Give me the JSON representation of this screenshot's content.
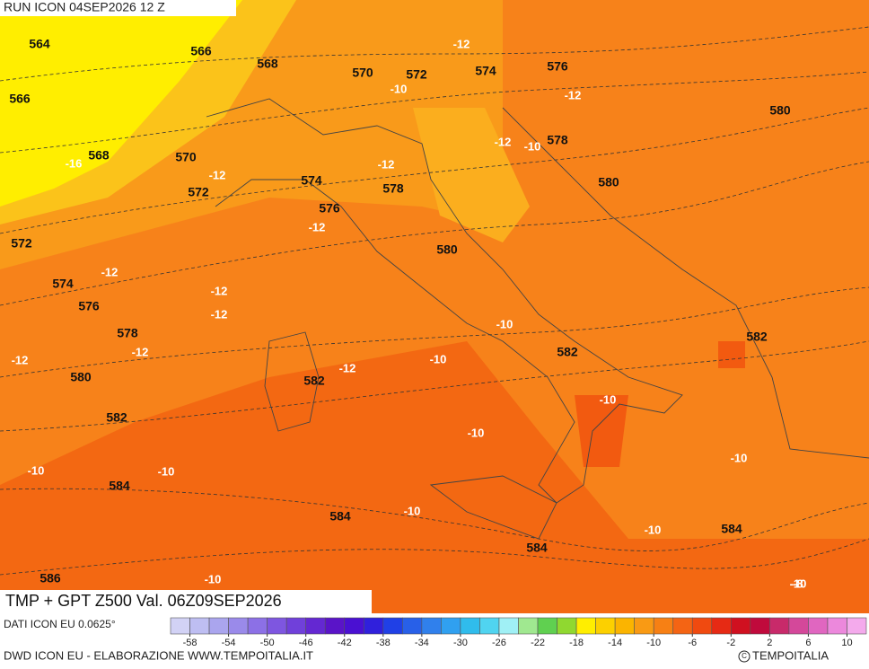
{
  "header": {
    "run": "RUN ICON 04SEP2026 12 Z"
  },
  "title": "TMP + GPT Z500 Val. 06Z09SEP2026",
  "footer": {
    "source": "DATI ICON EU 0.0625°",
    "credit": "DWD ICON EU - ELABORAZIONE WWW.TEMPOITALIA.IT",
    "brand": "TEMPOITALIA"
  },
  "colorbar": {
    "lim": [
      -60,
      12
    ],
    "ticks": [
      -58,
      -54,
      -50,
      -46,
      -42,
      -38,
      -34,
      -30,
      -26,
      -22,
      -18,
      -14,
      -10,
      -6,
      -2,
      2,
      6,
      10
    ],
    "colors": [
      "#d2d2f5",
      "#bebef2",
      "#aaa5ee",
      "#9a8aea",
      "#8c70e6",
      "#7e56e0",
      "#7040da",
      "#6428d2",
      "#5a14c8",
      "#4a10d2",
      "#3020dc",
      "#2040e6",
      "#2860e8",
      "#3080ec",
      "#30a0f0",
      "#30bcec",
      "#50d4f0",
      "#a0f0f5",
      "#a0e890",
      "#60d050",
      "#90d830",
      "#ffee00",
      "#fcd000",
      "#fbb400",
      "#f99a14",
      "#f78014",
      "#f46414",
      "#f04a10",
      "#e62a14",
      "#d01020",
      "#c00a3c",
      "#c82a6a",
      "#d4489a",
      "#e066c0",
      "#ec88dc",
      "#f4aaec"
    ]
  },
  "map": {
    "geopotential_labels": [
      "564",
      "566",
      "568",
      "570",
      "572",
      "574",
      "576",
      "566",
      "580",
      "568",
      "570",
      "572",
      "574",
      "578",
      "578",
      "580",
      "576",
      "572",
      "580",
      "574",
      "576",
      "578",
      "582",
      "582",
      "580",
      "582",
      "582",
      "584",
      "584",
      "584",
      "584",
      "586"
    ],
    "temperature_labels": [
      "-12",
      "-10",
      "-12",
      "-16",
      "-12",
      "-12",
      "-12",
      "-10",
      "-12",
      "-12",
      "-12",
      "-12",
      "-12",
      "-12",
      "-10",
      "-12",
      "-10",
      "-10",
      "-10",
      "-10",
      "-10",
      "-10",
      "-10",
      "-10",
      "-10",
      "-10",
      "-8"
    ]
  }
}
